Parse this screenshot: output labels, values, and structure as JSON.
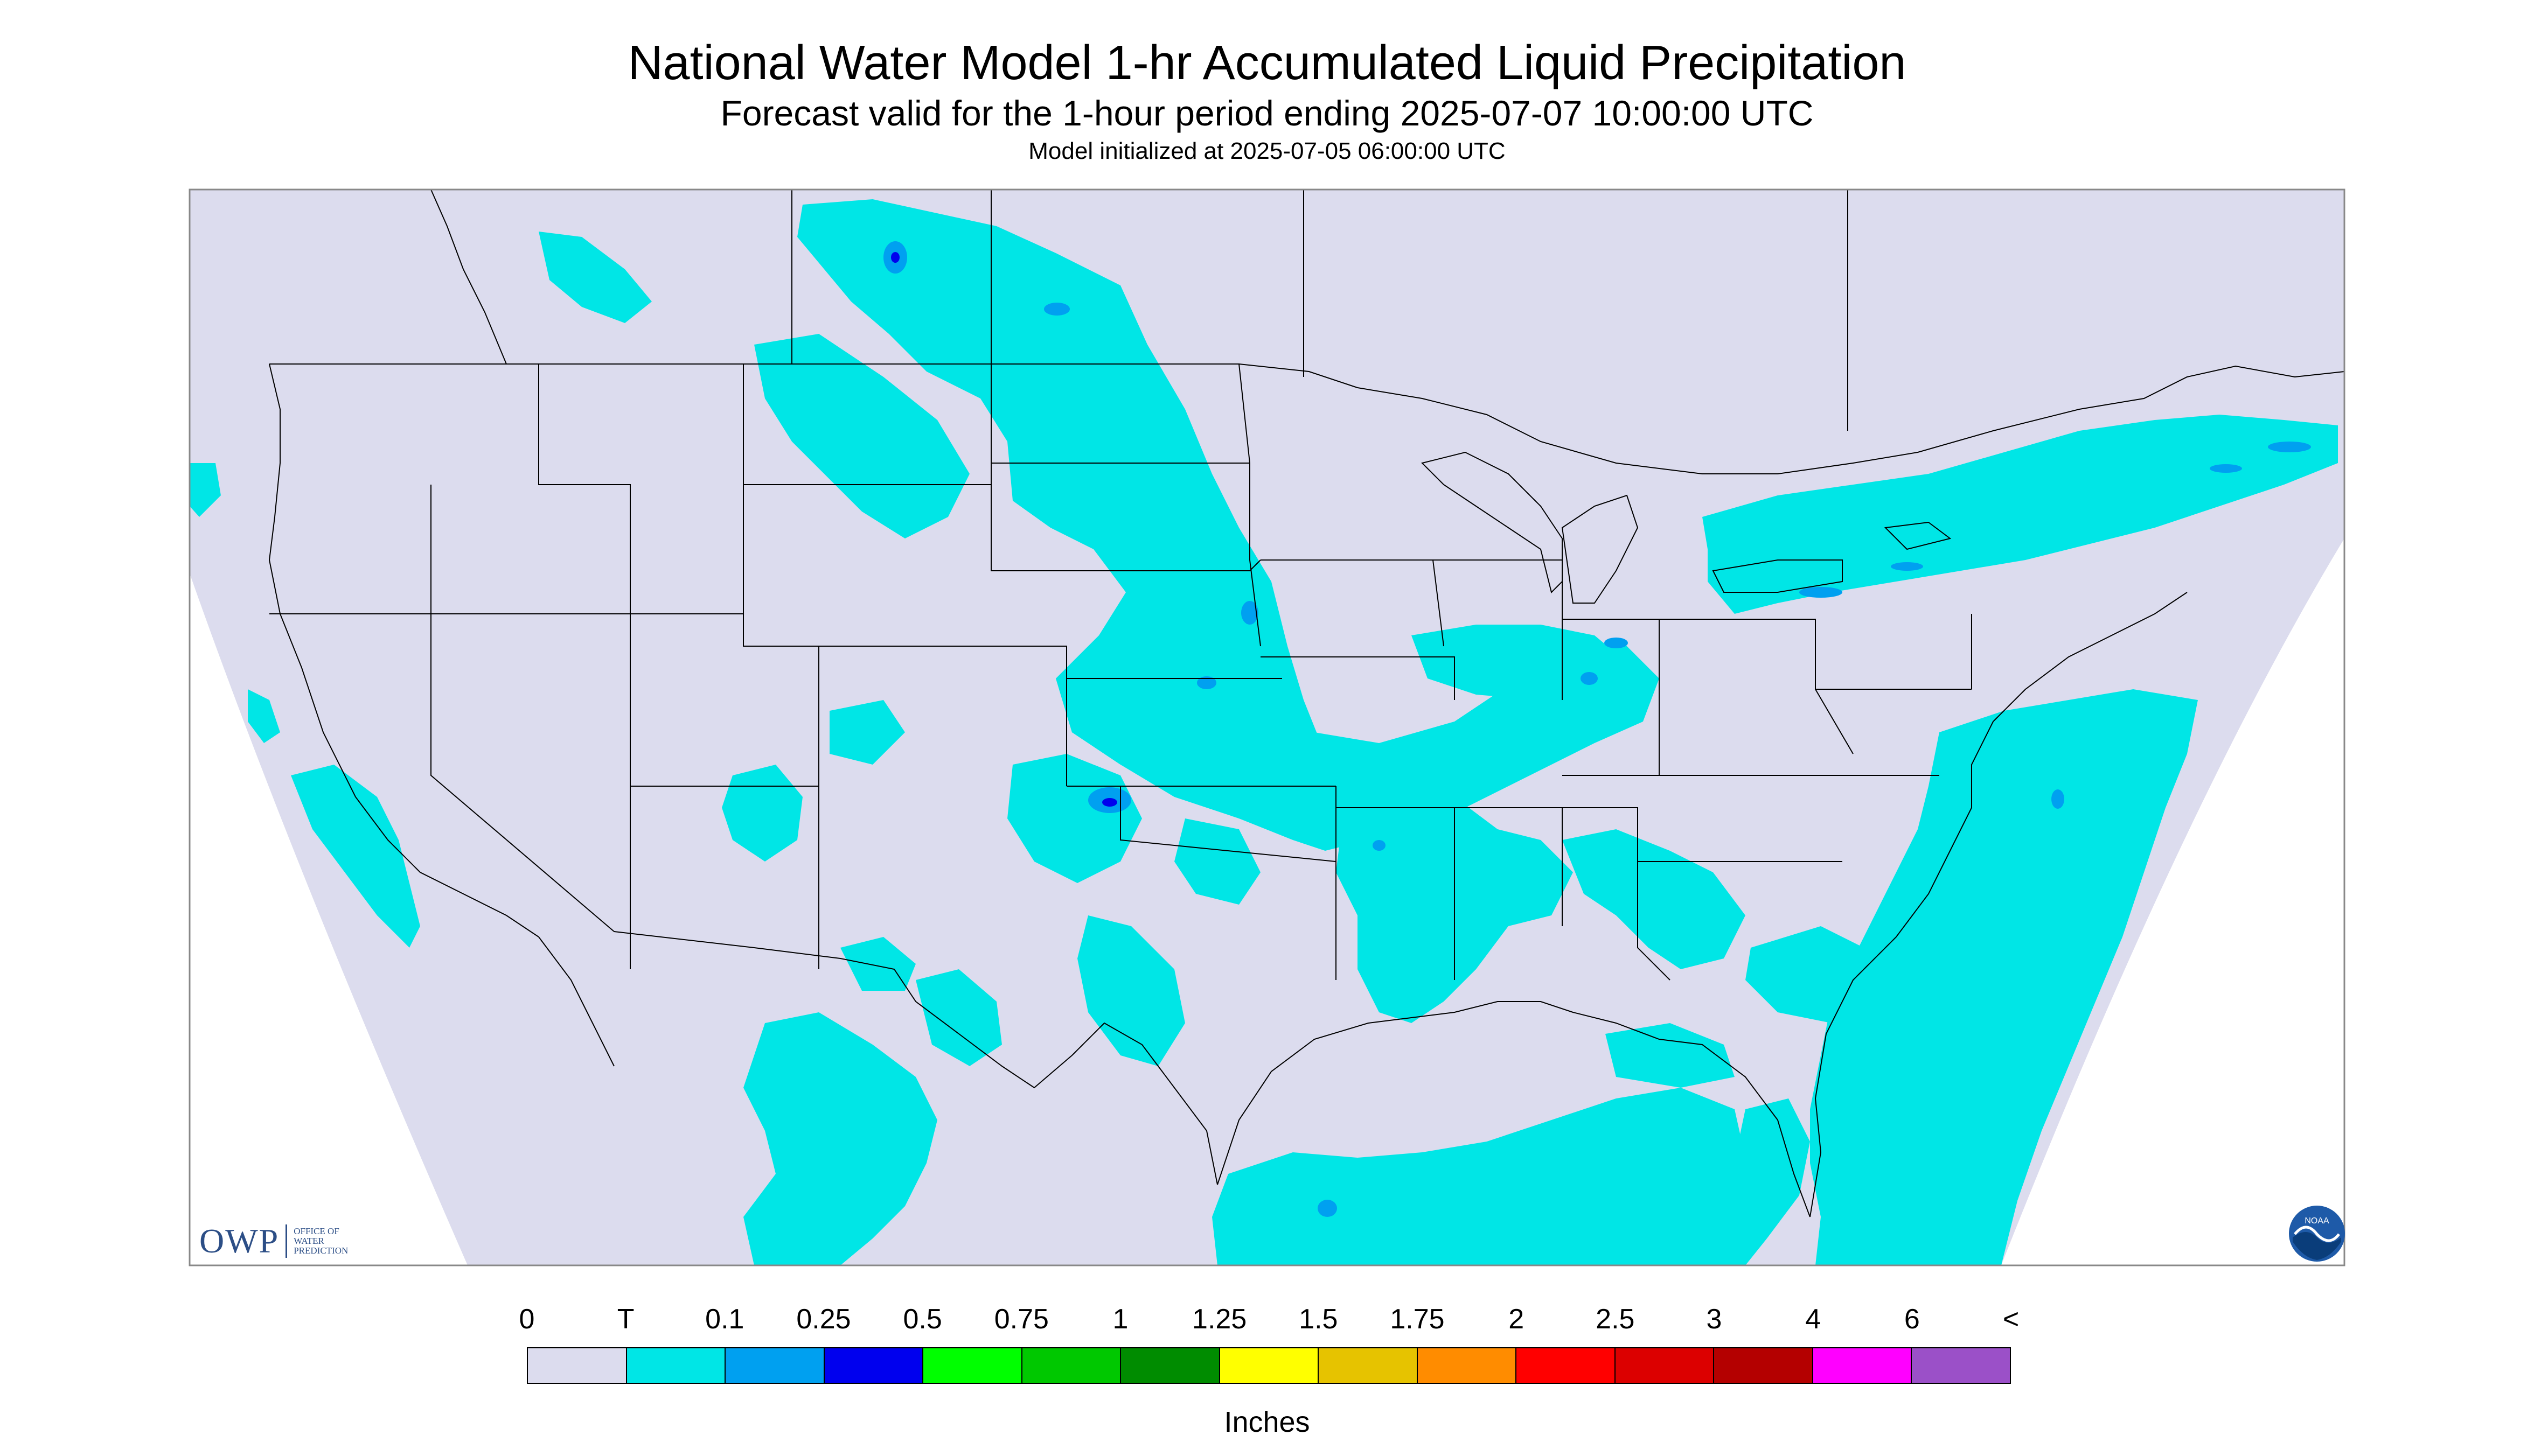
{
  "title": "National Water Model 1-hr Accumulated Liquid Precipitation",
  "subtitle": "Forecast valid for the 1-hour period ending 2025-07-07 10:00:00 UTC",
  "init_line": "Model initialized at 2025-07-05 06:00:00 UTC",
  "legend": {
    "units": "Inches",
    "labels": [
      "0",
      "T",
      "0.1",
      "0.25",
      "0.5",
      "0.75",
      "1",
      "1.25",
      "1.5",
      "1.75",
      "2",
      "2.5",
      "3",
      "4",
      "6",
      "<"
    ],
    "colors": [
      "#dcdcee",
      "#00e6e6",
      "#00a0f0",
      "#0000ee",
      "#00ff00",
      "#00c800",
      "#008c00",
      "#ffff00",
      "#e6c300",
      "#ff8c00",
      "#ff0000",
      "#dc0000",
      "#b40000",
      "#ff00ff",
      "#9b50c8"
    ]
  },
  "colors": {
    "no_precip": "#dcdcee",
    "trace": "#00e6e6",
    "light": "#00a0f0",
    "moderate": "#0000ee",
    "outside": "#ffffff"
  },
  "logos": {
    "owp": "OWP",
    "owp_text": [
      "OFFICE OF",
      "WATER",
      "PREDICTION"
    ],
    "noaa": "NOAA"
  }
}
